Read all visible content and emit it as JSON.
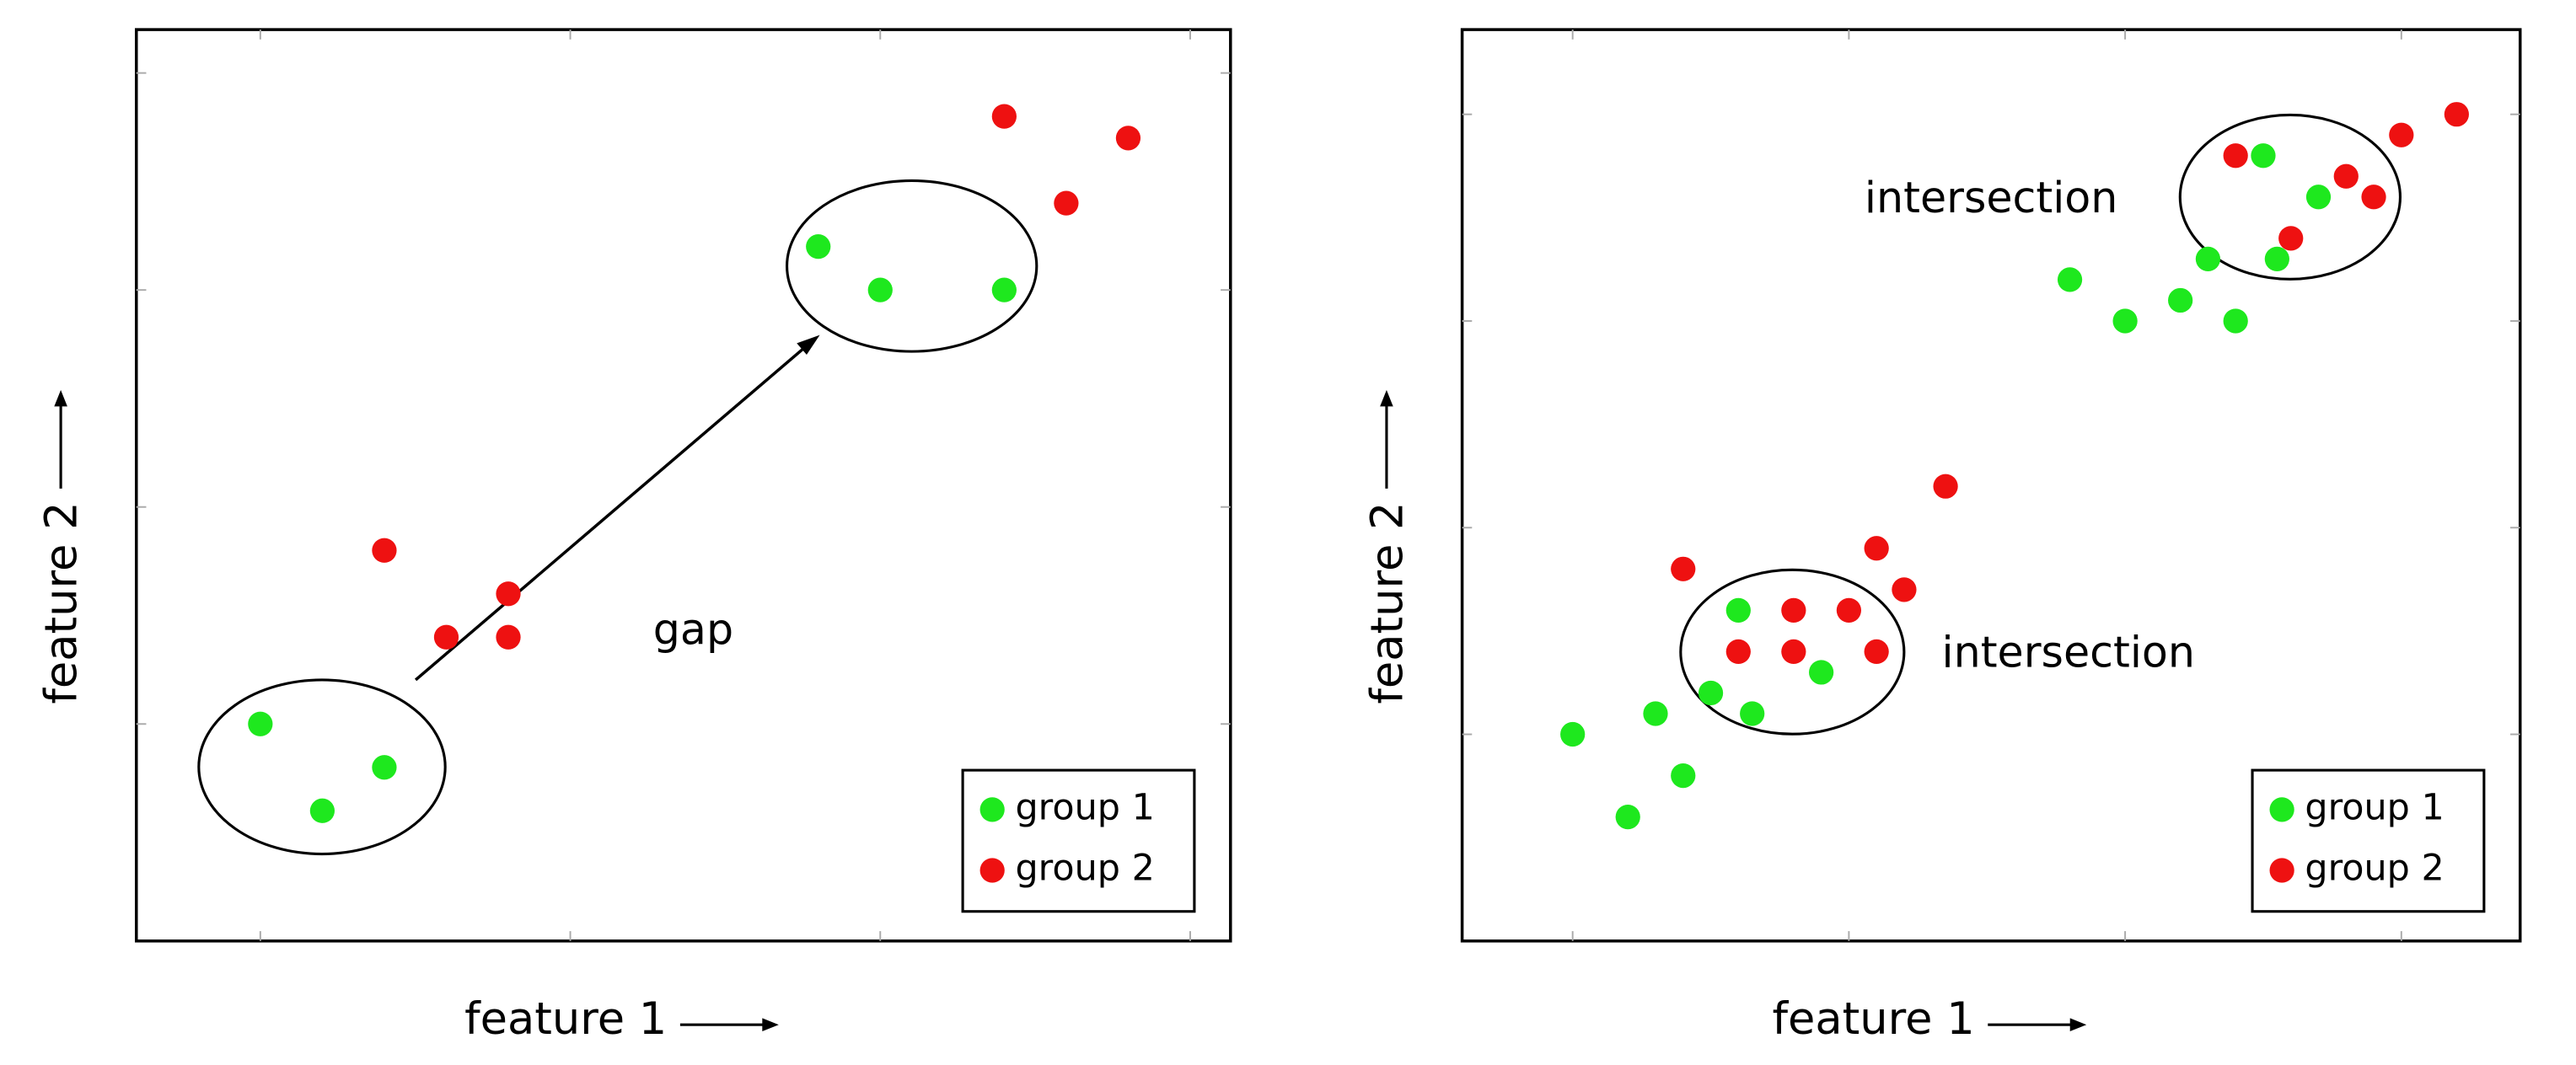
{
  "chart_data": [
    {
      "type": "scatter",
      "xlabel": "feature 1",
      "ylabel": "feature 2",
      "xlim": [
        -0.4,
        3.13
      ],
      "ylim": [
        -1,
        3.2
      ],
      "xticks": [
        0,
        1,
        2,
        3
      ],
      "yticks": [
        0,
        1,
        2,
        3
      ],
      "legend": "lower right",
      "annotations": [
        "gap"
      ],
      "series": [
        {
          "name": "group 1",
          "color": "#1ee81e",
          "x": [
            0,
            0.2,
            0.4,
            1.8,
            2,
            2.4
          ],
          "values": [
            0,
            -0.4,
            -0.2,
            2.2,
            2,
            2
          ]
        },
        {
          "name": "group 2",
          "color": "#ee1111",
          "x": [
            0.4,
            0.6,
            0.8,
            0.8,
            2.4,
            2.6,
            2.8
          ],
          "values": [
            0.8,
            0.4,
            0.6,
            0.4,
            2.8,
            2.4,
            2.7
          ]
        }
      ]
    },
    {
      "type": "scatter",
      "xlabel": "feature 1",
      "ylabel": "feature 2",
      "xlim": [
        -0.4,
        3.43
      ],
      "ylim": [
        -1,
        3.41
      ],
      "xticks": [
        0,
        1,
        2,
        3
      ],
      "yticks": [
        0,
        1,
        2,
        3
      ],
      "legend": "lower right",
      "annotations": [
        "intersection",
        "intersection"
      ],
      "series": [
        {
          "name": "group 1",
          "color": "#1ee81e",
          "x": [
            0,
            0.2,
            0.3,
            0.4,
            0.5,
            0.6,
            0.65,
            0.9,
            1.8,
            2,
            2.2,
            2.3,
            2.4,
            2.5,
            2.55,
            2.7
          ],
          "values": [
            0,
            -0.4,
            0.1,
            -0.2,
            0.2,
            0.6,
            0.1,
            0.3,
            2.2,
            2,
            2.1,
            2.3,
            2,
            2.8,
            2.3,
            2.6
          ]
        },
        {
          "name": "group 2",
          "color": "#ee1111",
          "x": [
            0.4,
            0.6,
            0.8,
            0.8,
            1.0,
            1.1,
            1.1,
            1.2,
            1.35,
            2.4,
            2.6,
            2.8,
            2.9,
            3.0,
            3.2
          ],
          "values": [
            0.8,
            0.4,
            0.6,
            0.4,
            0.6,
            0.9,
            0.4,
            0.7,
            1.2,
            2.8,
            2.4,
            2.7,
            2.6,
            2.9,
            3.0
          ]
        }
      ]
    }
  ]
}
